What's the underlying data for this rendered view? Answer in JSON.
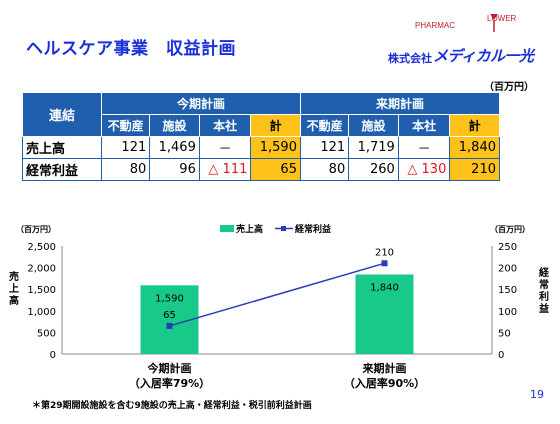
{
  "header": {
    "title": "ヘルスケア事業　収益計画"
  },
  "brand": {
    "logo_top_left": "PHARMAC",
    "logo_top_right": "LOWER",
    "company_prefix": "株式会社",
    "company_name": "メディカル一光"
  },
  "units": {
    "table": "（百万円）"
  },
  "table": {
    "corner": "連結",
    "groups": [
      "今期計画",
      "来期計画"
    ],
    "subheaders": [
      "不動産",
      "施設",
      "本社",
      "計",
      "不動産",
      "施設",
      "本社",
      "計"
    ],
    "rows": [
      {
        "label": "売上高",
        "cells": [
          "121",
          "1,469",
          "－",
          "1,590",
          "121",
          "1,719",
          "－",
          "1,840"
        ]
      },
      {
        "label": "経常利益",
        "cells": [
          "80",
          "96",
          "△ 111",
          "65",
          "80",
          "260",
          "△ 130",
          "210"
        ]
      }
    ]
  },
  "chart_data": {
    "type": "bar",
    "categories": [
      "今期計画",
      "来期計画"
    ],
    "category_sublabels": [
      "（入居率79%）",
      "（入居率90%）"
    ],
    "series": [
      {
        "name": "売上高",
        "kind": "bar",
        "axis": "left",
        "values": [
          1590,
          1840
        ],
        "labels": [
          "1,590",
          "1,840"
        ],
        "color": "#19c98a"
      },
      {
        "name": "経常利益",
        "kind": "line",
        "axis": "right",
        "values": [
          65,
          210
        ],
        "labels": [
          "65",
          "210"
        ],
        "color": "#2b3bb8"
      }
    ],
    "left_axis": {
      "unit": "（百万円）",
      "label": "売上高",
      "range": [
        0,
        2500
      ],
      "ticks": [
        "0",
        "500",
        "1,000",
        "1,500",
        "2,000",
        "2,500"
      ]
    },
    "right_axis": {
      "unit": "（百万円）",
      "label": "経常利益",
      "range": [
        0,
        250
      ],
      "ticks": [
        "0",
        "50",
        "100",
        "150",
        "200",
        "250"
      ]
    },
    "legend_position": "top-center",
    "grid": false
  },
  "footer": {
    "note": "＊第29期開設施設を含む9施設の売上高・経常利益・税引前利益計画",
    "page": "19"
  }
}
